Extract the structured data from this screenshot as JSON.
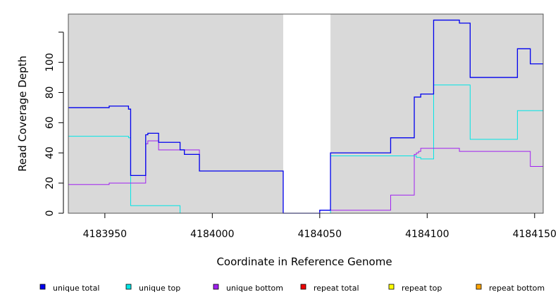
{
  "chart_data": {
    "type": "line",
    "xlabel": "Coordinate in Reference Genome",
    "ylabel": "Read Coverage Depth",
    "xlim": [
      4183933,
      4184154
    ],
    "ylim": [
      0,
      132
    ],
    "x_ticks": [
      4183950,
      4184000,
      4184050,
      4184100,
      4184150
    ],
    "x_tick_labels": [
      "4183950",
      "4184000",
      "4184050",
      "4184100",
      "4184150"
    ],
    "y_ticks": [
      0,
      20,
      40,
      60,
      80,
      100,
      120
    ],
    "y_tick_labels": [
      "0",
      "20",
      "40",
      "60",
      "80",
      "100",
      ""
    ],
    "shaded_regions": [
      {
        "x": [
          4183933,
          4184033
        ],
        "color": "#d9d9d9"
      },
      {
        "x": [
          4184055,
          4184154
        ],
        "color": "#d9d9d9"
      }
    ],
    "legend_position": "bottom",
    "series": [
      {
        "name": "unique total",
        "color": "#0000ee",
        "steps": [
          [
            4183933,
            70
          ],
          [
            4183952,
            71
          ],
          [
            4183961,
            69
          ],
          [
            4183962,
            25
          ],
          [
            4183969,
            52
          ],
          [
            4183970,
            53
          ],
          [
            4183975,
            47
          ],
          [
            4183985,
            42
          ],
          [
            4183987,
            39
          ],
          [
            4183994,
            28
          ],
          [
            4184033,
            0
          ],
          [
            4184050,
            2
          ],
          [
            4184055,
            40
          ],
          [
            4184083,
            50
          ],
          [
            4184094,
            77
          ],
          [
            4184097,
            79
          ],
          [
            4184103,
            128
          ],
          [
            4184115,
            126
          ],
          [
            4184120,
            90
          ],
          [
            4184142,
            109
          ],
          [
            4184148,
            99
          ],
          [
            4184154,
            99
          ]
        ]
      },
      {
        "name": "unique top",
        "color": "#00e5e5",
        "steps": [
          [
            4183933,
            51
          ],
          [
            4183961,
            50
          ],
          [
            4183962,
            5
          ],
          [
            4183985,
            0
          ],
          [
            4184055,
            38
          ],
          [
            4184095,
            37
          ],
          [
            4184097,
            36
          ],
          [
            4184103,
            85
          ],
          [
            4184120,
            49
          ],
          [
            4184142,
            68
          ],
          [
            4184154,
            68
          ]
        ]
      },
      {
        "name": "unique bottom",
        "color": "#a020f0",
        "steps": [
          [
            4183933,
            19
          ],
          [
            4183952,
            20
          ],
          [
            4183969,
            46
          ],
          [
            4183970,
            48
          ],
          [
            4183975,
            42
          ],
          [
            4183994,
            28
          ],
          [
            4184033,
            0
          ],
          [
            4184050,
            2
          ],
          [
            4184083,
            12
          ],
          [
            4184094,
            39
          ],
          [
            4184095,
            40
          ],
          [
            4184096,
            41
          ],
          [
            4184097,
            43
          ],
          [
            4184115,
            41
          ],
          [
            4184148,
            31
          ],
          [
            4184154,
            31
          ]
        ]
      },
      {
        "name": "repeat total",
        "color": "#ee0000",
        "steps": [
          [
            4183933,
            0
          ],
          [
            4184154,
            0
          ]
        ]
      },
      {
        "name": "repeat top",
        "color": "#ffff00",
        "steps": [
          [
            4183933,
            0
          ],
          [
            4184154,
            0
          ]
        ]
      },
      {
        "name": "repeat bottom",
        "color": "#ffa500",
        "steps": [
          [
            4183933,
            0
          ],
          [
            4184154,
            0
          ]
        ]
      }
    ]
  }
}
